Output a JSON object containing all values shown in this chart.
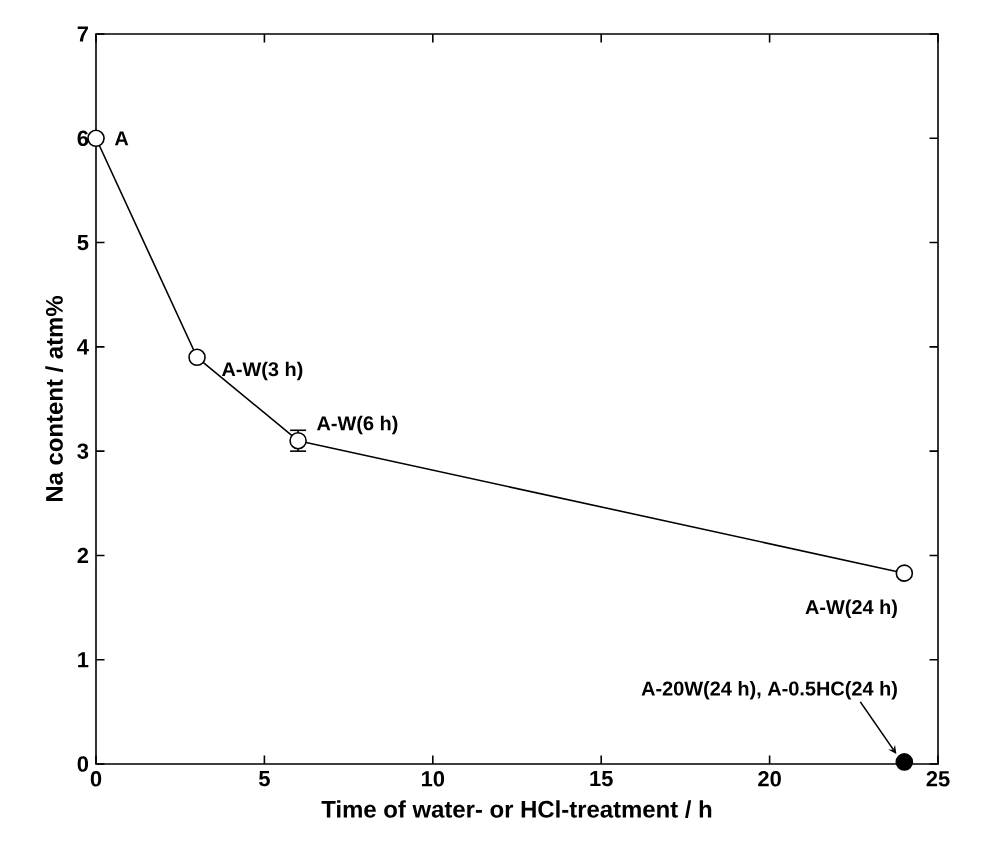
{
  "chart_data": {
    "type": "line",
    "xlabel": "Time of water- or HCl-treatment / h",
    "ylabel": "Na content / atm%",
    "xlim": [
      0,
      25
    ],
    "xticks": [
      0,
      5,
      10,
      15,
      20,
      25
    ],
    "ylim": [
      0,
      7
    ],
    "yticks": [
      0,
      1,
      2,
      3,
      4,
      5,
      6,
      7
    ],
    "series": [
      {
        "marker": "circle",
        "color": "#000000",
        "x": [
          0,
          3,
          6,
          24
        ],
        "values": [
          6.0,
          3.9,
          3.1,
          1.83
        ],
        "errors": [
          null,
          null,
          0.1,
          null
        ]
      },
      {
        "type": "scatter",
        "marker": "circle",
        "color": "#000000",
        "x": [
          24
        ],
        "values": [
          0.02
        ]
      }
    ],
    "annotations": [
      {
        "text": "A",
        "x": 0,
        "y": 6.0
      },
      {
        "text": "A-W(3 h)",
        "x": 3,
        "y": 3.9
      },
      {
        "text": "A-W(6 h)",
        "x": 6,
        "y": 3.1
      },
      {
        "text": "A-W(24 h)",
        "x": 24,
        "y": 1.83
      },
      {
        "text": "A-20W(24 h), A-0.5HC(24 h)",
        "x": 24,
        "y": 0.02
      }
    ]
  }
}
